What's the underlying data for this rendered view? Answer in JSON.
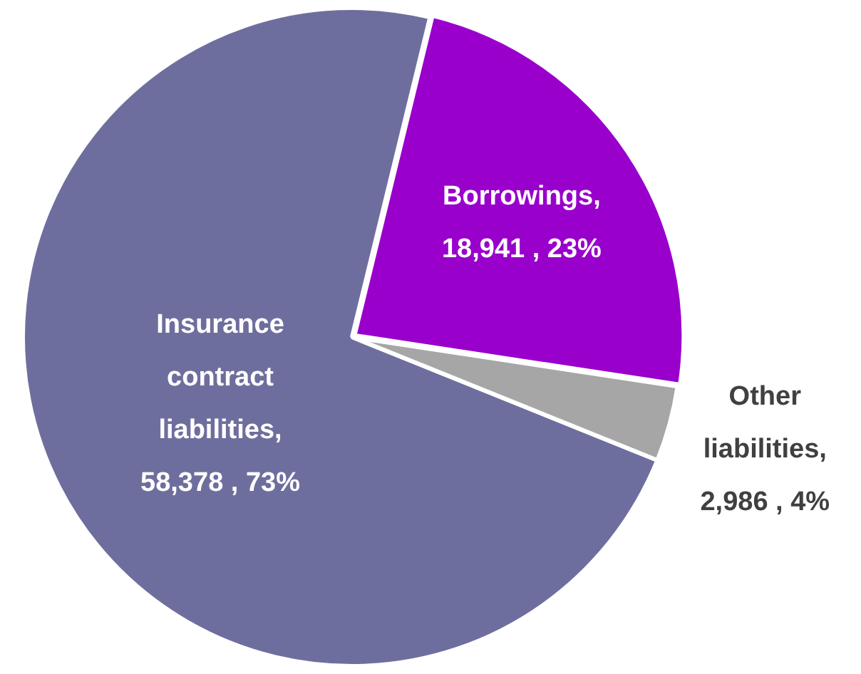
{
  "chart_data": {
    "type": "pie",
    "categories": [
      "Insurance contract liabilities",
      "Borrowings",
      "Other liabilities"
    ],
    "values": [
      58378,
      18941,
      2986
    ],
    "colors": [
      "#6e6e9e",
      "#9900cc",
      "#a6a6a6"
    ],
    "value_labels": [
      ", 58,378 , 73%",
      ", 18,941 , 23%",
      ", 2,986 , 4%"
    ],
    "legend": false
  }
}
